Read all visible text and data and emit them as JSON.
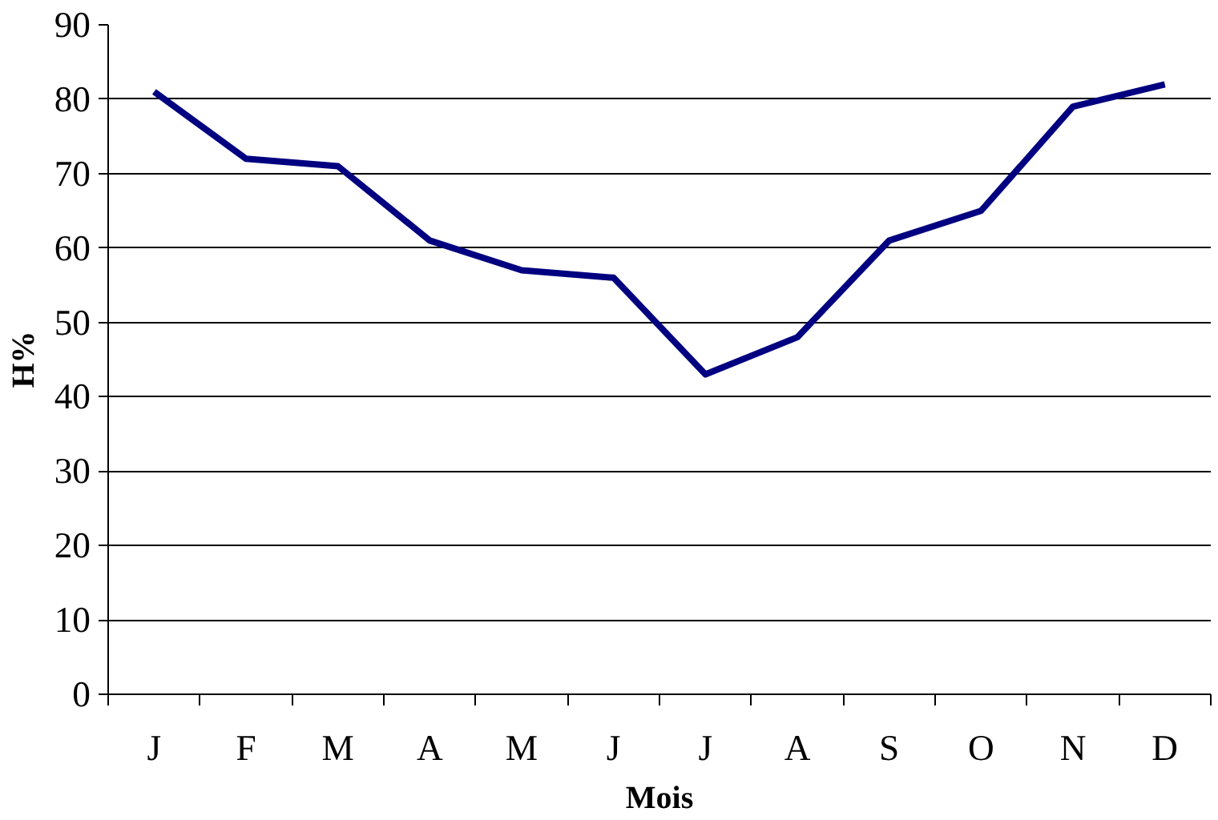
{
  "chart_data": {
    "type": "line",
    "xlabel": "Mois",
    "ylabel": "H%",
    "categories": [
      "J",
      "F",
      "M",
      "A",
      "M",
      "J",
      "J",
      "A",
      "S",
      "O",
      "N",
      "D"
    ],
    "series": [
      {
        "color": "#000080",
        "values": [
          81,
          72,
          71,
          61,
          57,
          56,
          43,
          48,
          61,
          65,
          79,
          82
        ]
      }
    ],
    "ylim": [
      0,
      90
    ],
    "yticks": [
      0,
      10,
      20,
      30,
      40,
      50,
      60,
      70,
      80,
      90
    ],
    "grid": "y",
    "marker": "none",
    "line_style": "solid"
  }
}
